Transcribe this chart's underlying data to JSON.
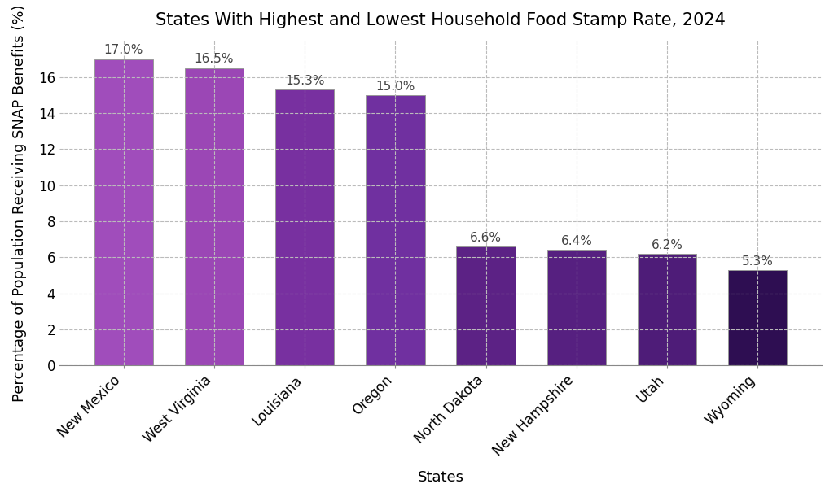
{
  "title": "States With Highest and Lowest Household Food Stamp Rate, 2024",
  "xlabel": "States",
  "ylabel": "Percentage of Population Receiving SNAP Benefits (%)",
  "categories": [
    "New Mexico",
    "West Virginia",
    "Louisiana",
    "Oregon",
    "North Dakota",
    "New Hampshire",
    "Utah",
    "Wyoming"
  ],
  "values": [
    17.0,
    16.5,
    15.3,
    15.0,
    6.6,
    6.4,
    6.2,
    5.3
  ],
  "bar_colors": [
    "#a04dbb",
    "#9b47b5",
    "#7830a0",
    "#7030a0",
    "#5c2285",
    "#562080",
    "#4e1c78",
    "#2e0e52"
  ],
  "bar_edge_color": "#999999",
  "label_fontsize": 11,
  "title_fontsize": 15,
  "axis_label_fontsize": 13,
  "tick_label_fontsize": 12,
  "ylim": [
    0,
    18
  ],
  "yticks": [
    0,
    2,
    4,
    6,
    8,
    10,
    12,
    14,
    16
  ],
  "background_color": "#ffffff",
  "grid_color": "#bbbbbb",
  "value_label_color": "#444444"
}
